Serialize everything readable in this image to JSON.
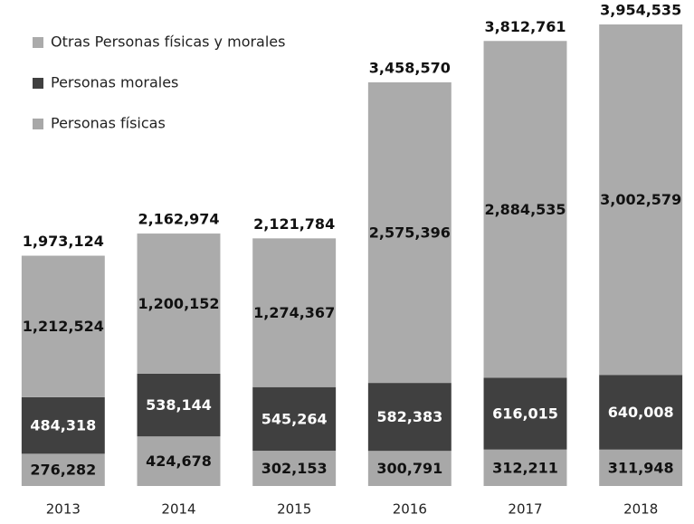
{
  "chart_data": {
    "type": "stacked_bar",
    "categories": [
      "2013",
      "2014",
      "2015",
      "2016",
      "2017",
      "2018"
    ],
    "series": [
      {
        "name": "Personas físicas",
        "color": "#a8a8a8",
        "values": [
          276282,
          424678,
          302153,
          300791,
          312211,
          311948
        ],
        "value_labels": [
          "276,282",
          "424,678",
          "302,153",
          "300,791",
          "312,211",
          "311,948"
        ]
      },
      {
        "name": "Personas morales",
        "color": "#404040",
        "values": [
          484318,
          538144,
          545264,
          582383,
          616015,
          640008
        ],
        "value_labels": [
          "484,318",
          "538,144",
          "545,264",
          "582,383",
          "616,015",
          "640,008"
        ]
      },
      {
        "name": "Otras Personas físicas y morales",
        "color": "#ababab",
        "values": [
          1212524,
          1200152,
          1274367,
          2575396,
          2884535,
          3002579
        ],
        "value_labels": [
          "1,212,524",
          "1,200,152",
          "1,274,367",
          "2,575,396",
          "2,884,535",
          "3,002,579"
        ]
      }
    ],
    "totals": [
      1973124,
      2162974,
      2121784,
      3458570,
      3812761,
      3954535
    ],
    "total_labels": [
      "1,973,124",
      "2,162,974",
      "2,121,784",
      "3,458,570",
      "3,812,761",
      "3,954,535"
    ]
  }
}
